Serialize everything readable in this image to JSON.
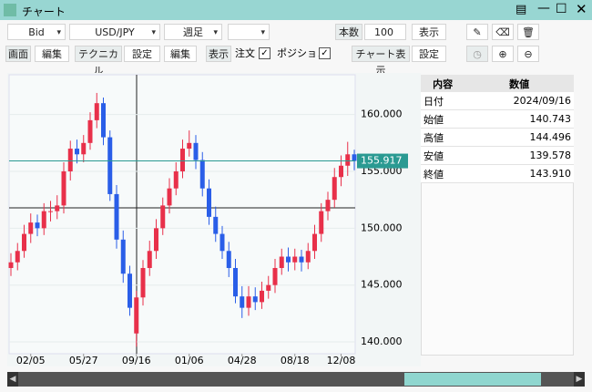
{
  "window": {
    "title": "チャート"
  },
  "toolbar": {
    "price_side": "Bid",
    "pair": "USD/JPY",
    "period": "週足",
    "count_label": "本数",
    "count": "100",
    "show": "表示",
    "row2": [
      "画面",
      "編集",
      "テクニカル",
      "設定",
      "編集",
      "表示"
    ],
    "order": "注文",
    "position": "ポジション",
    "chart_show": "チャート表示",
    "settings": "設定"
  },
  "chart_data": {
    "type": "candlestick",
    "up_color": "#e8304a",
    "down_color": "#2a5ee8",
    "open": [
      146.5,
      147,
      148,
      149.5,
      150.5,
      150,
      151.5,
      151.5,
      152,
      155,
      157,
      156.5,
      157.5,
      159.5,
      161,
      158,
      153,
      149,
      146,
      140.743,
      143.91,
      146.5,
      148,
      150,
      152,
      153.5,
      155,
      157,
      157.5,
      156,
      153.5,
      151,
      149.5,
      148,
      146.5,
      144,
      143,
      144,
      143.5,
      144.5,
      145,
      146.5,
      147.5,
      147,
      147.5,
      147,
      148,
      149.5,
      151.5,
      152.5,
      154.5,
      155.5,
      156.5
    ],
    "high": [
      147.8,
      148.7,
      150.3,
      151.3,
      151.2,
      152.2,
      152.4,
      152.9,
      155.8,
      157.7,
      157.8,
      158.2,
      160.2,
      161.9,
      161.5,
      158.6,
      153.8,
      149.8,
      146.7,
      144.496,
      147.2,
      148.9,
      150.8,
      152.7,
      154.4,
      155.8,
      157.8,
      158.6,
      158.2,
      156.7,
      154.3,
      151.9,
      150.2,
      148.8,
      147.3,
      144.9,
      144.9,
      144.8,
      145.3,
      145.8,
      147.3,
      148.2,
      148.3,
      148.2,
      148.1,
      148.7,
      150.3,
      152.2,
      153.2,
      155.3,
      156.4,
      157.6,
      156.9
    ],
    "low": [
      145.8,
      146.3,
      147.4,
      148.7,
      149.3,
      149.4,
      150.6,
      150.8,
      151.3,
      154.2,
      155.7,
      155.8,
      156.9,
      158.8,
      157.3,
      152.4,
      148.2,
      145.2,
      142.3,
      139.578,
      143.2,
      145.8,
      147.3,
      149.4,
      151.3,
      152.9,
      154.4,
      156.3,
      155.2,
      152.8,
      150.3,
      148.8,
      147.3,
      145.7,
      143.4,
      142.1,
      142.3,
      142.8,
      142.9,
      143.8,
      144.3,
      145.9,
      146.2,
      146.3,
      146.2,
      146.4,
      147.3,
      148.8,
      150.7,
      151.8,
      153.7,
      154.6,
      155.1
    ],
    "close": [
      147,
      148,
      149.5,
      150.5,
      150,
      151.5,
      151.5,
      152,
      155,
      157,
      156.5,
      157.5,
      159.5,
      161,
      158,
      153,
      149,
      146,
      143,
      143.91,
      146.5,
      148,
      150,
      152,
      153.5,
      155,
      157,
      157.5,
      156,
      153.5,
      151,
      149.5,
      148,
      146.5,
      144,
      143,
      144,
      143.5,
      144.5,
      145,
      146.5,
      147.5,
      147,
      147.5,
      147,
      148,
      149.5,
      151.5,
      152.5,
      154.5,
      155.5,
      156.5,
      155.917
    ],
    "xticks": [
      {
        "value": 3,
        "label": "02/05"
      },
      {
        "value": 11,
        "label": "05/27"
      },
      {
        "value": 19,
        "label": "09/16"
      },
      {
        "value": 27,
        "label": "01/06"
      },
      {
        "value": 35,
        "label": "04/28"
      },
      {
        "value": 43,
        "label": "08/18"
      },
      {
        "value": 50,
        "label": "12/08"
      }
    ],
    "ylim": [
      138.8,
      163.5
    ],
    "yticks": [
      {
        "value": 140,
        "label": "140.000"
      },
      {
        "value": 145,
        "label": "145.000"
      },
      {
        "value": 150,
        "label": "150.000"
      },
      {
        "value": 155,
        "label": "155.000"
      },
      {
        "value": 160,
        "label": "160.000"
      }
    ],
    "last_price": 155.917,
    "last_price_color": "#2a9a92"
  },
  "info_table": {
    "headers": [
      "内容",
      "数値"
    ],
    "rows": [
      [
        "日付",
        "2024/09/16"
      ],
      [
        "始値",
        "140.743"
      ],
      [
        "高値",
        "144.496"
      ],
      [
        "安値",
        "139.578"
      ],
      [
        "終値",
        "143.910"
      ]
    ]
  }
}
